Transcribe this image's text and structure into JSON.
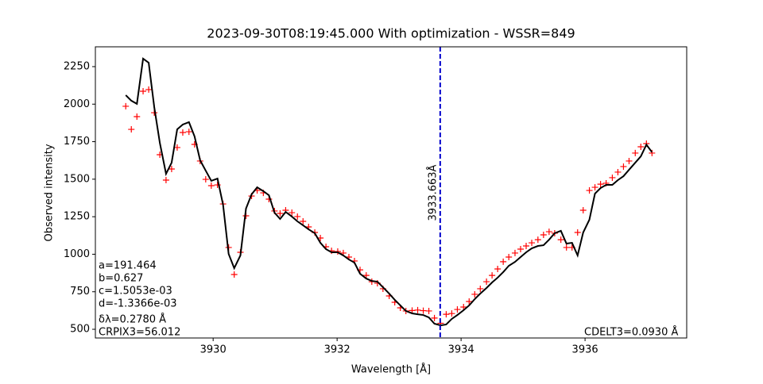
{
  "chart_data": {
    "type": "line",
    "title": "2023-09-30T08:19:45.000 With optimization - WSSR=849",
    "x_label": "Wavelength [Å]",
    "y_label": "Observed intensity",
    "xlim": [
      3928.1,
      3937.64
    ],
    "ylim": [
      442,
      2382
    ],
    "xticks": [
      3930,
      3932,
      3934,
      3936
    ],
    "yticks": [
      500,
      750,
      1000,
      1250,
      1500,
      1750,
      2000,
      2250
    ],
    "x": [
      3928.59,
      3928.68,
      3928.77,
      3928.87,
      3928.96,
      3929.05,
      3929.14,
      3929.24,
      3929.33,
      3929.42,
      3929.51,
      3929.61,
      3929.7,
      3929.79,
      3929.88,
      3929.97,
      3930.07,
      3930.16,
      3930.25,
      3930.34,
      3930.44,
      3930.53,
      3930.62,
      3930.71,
      3930.81,
      3930.9,
      3930.99,
      3931.08,
      3931.17,
      3931.27,
      3931.36,
      3931.45,
      3931.54,
      3931.64,
      3931.73,
      3931.82,
      3931.91,
      3932.01,
      3932.1,
      3932.19,
      3932.28,
      3932.37,
      3932.47,
      3932.56,
      3932.65,
      3932.74,
      3932.84,
      3932.93,
      3933.02,
      3933.11,
      3933.21,
      3933.3,
      3933.39,
      3933.48,
      3933.57,
      3933.67,
      3933.76,
      3933.85,
      3933.94,
      3934.04,
      3934.13,
      3934.22,
      3934.31,
      3934.41,
      3934.5,
      3934.59,
      3934.68,
      3934.77,
      3934.87,
      3934.96,
      3935.05,
      3935.14,
      3935.24,
      3935.33,
      3935.42,
      3935.51,
      3935.61,
      3935.7,
      3935.79,
      3935.88,
      3935.97,
      3936.07,
      3936.16,
      3936.25,
      3936.34,
      3936.44,
      3936.53,
      3936.62,
      3936.71,
      3936.81,
      3936.9,
      3936.99,
      3937.08
    ],
    "series": [
      {
        "color": "#ff0000",
        "marker": "+",
        "values": [
          1986,
          1832,
          1917,
          2086,
          2097,
          1943,
          1663,
          1494,
          1568,
          1711,
          1811,
          1816,
          1732,
          1621,
          1499,
          1457,
          1462,
          1335,
          1045,
          865,
          1013,
          1256,
          1388,
          1425,
          1409,
          1367,
          1288,
          1272,
          1293,
          1277,
          1251,
          1219,
          1182,
          1145,
          1108,
          1050,
          1023,
          1018,
          1008,
          981,
          955,
          896,
          859,
          817,
          807,
          770,
          722,
          680,
          643,
          622,
          625,
          628,
          624,
          622,
          575,
          540,
          600,
          605,
          632,
          648,
          685,
          733,
          770,
          817,
          859,
          902,
          950,
          981,
          1008,
          1034,
          1055,
          1076,
          1097,
          1129,
          1150,
          1140,
          1097,
          1045,
          1045,
          1145,
          1293,
          1425,
          1446,
          1467,
          1473,
          1510,
          1547,
          1584,
          1621,
          1674,
          1716,
          1737,
          1674
        ]
      },
      {
        "color": "#000000",
        "values": [
          2060,
          2023,
          2002,
          2303,
          2276,
          1980,
          1742,
          1536,
          1610,
          1832,
          1864,
          1880,
          1785,
          1626,
          1557,
          1489,
          1504,
          1330,
          1002,
          907,
          992,
          1304,
          1399,
          1446,
          1420,
          1393,
          1277,
          1235,
          1282,
          1251,
          1219,
          1193,
          1166,
          1140,
          1076,
          1034,
          1013,
          1013,
          992,
          965,
          944,
          870,
          838,
          822,
          817,
          780,
          738,
          696,
          659,
          622,
          606,
          600,
          595,
          579,
          537,
          526,
          532,
          569,
          595,
          627,
          659,
          701,
          738,
          775,
          812,
          844,
          881,
          923,
          949,
          981,
          1013,
          1039,
          1055,
          1060,
          1097,
          1140,
          1156,
          1071,
          1076,
          992,
          1145,
          1230,
          1404,
          1441,
          1462,
          1462,
          1494,
          1520,
          1563,
          1610,
          1652,
          1730,
          1680
        ]
      }
    ],
    "vline": {
      "x": 3933.663,
      "color": "#0000cc",
      "label": "3933.663Å"
    },
    "annotations": [
      "a=191.464",
      "b=0.627",
      "c=1.5053e-03",
      "d=-1.3366e-03",
      "δλ=0.2780 Å",
      "CRPIX3=56.012"
    ],
    "corner_note": "CDELT3=0.0930 Å"
  }
}
